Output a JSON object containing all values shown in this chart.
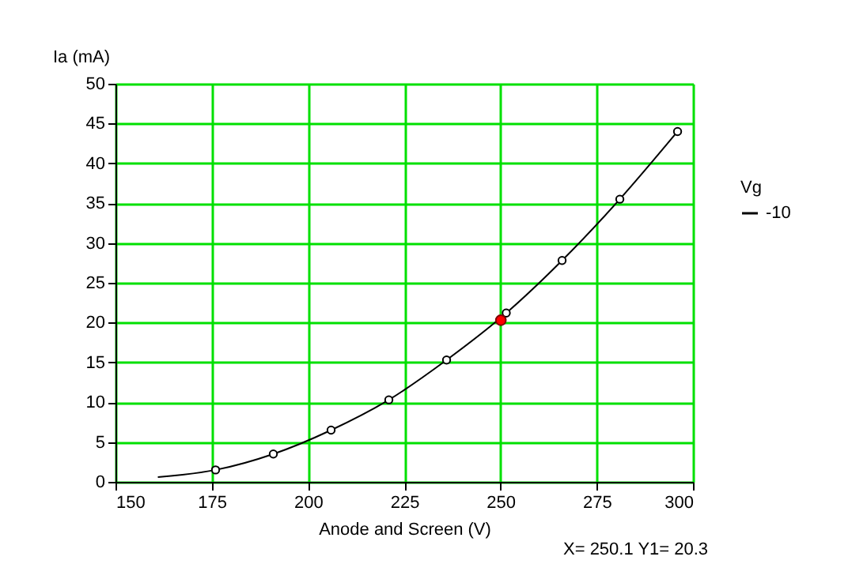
{
  "chart_data": {
    "type": "line",
    "xlabel": "Anode and Screen (V)",
    "ylabel": "Ia (mA)",
    "legend_title": "Vg",
    "xlim": [
      150,
      300
    ],
    "xticks": [
      150,
      175,
      200,
      225,
      250,
      275,
      300
    ],
    "ylim": [
      0,
      50
    ],
    "yticks": [
      0,
      5,
      10,
      15,
      20,
      25,
      30,
      35,
      40,
      45,
      50
    ],
    "grid": true,
    "legend": "right",
    "series": [
      {
        "name": "-10",
        "color": "#000000",
        "marker": "none",
        "x": [
          161,
          176,
          191,
          206,
          221,
          236,
          251.5,
          266,
          281,
          296
        ],
        "values": [
          0.6,
          1.5,
          3.5,
          6.5,
          10.3,
          15.3,
          21.2,
          27.8,
          35.5,
          44
        ]
      },
      {
        "type": "scatter",
        "color": "#000000",
        "marker": "circle",
        "x": [
          176,
          191,
          206,
          221,
          236,
          251.5,
          266,
          281,
          296
        ],
        "values": [
          1.5,
          3.5,
          6.5,
          10.3,
          15.3,
          21.2,
          27.8,
          35.5,
          44
        ]
      },
      {
        "type": "scatter",
        "color": "#ff0000",
        "marker": "circle",
        "x": [
          250.1
        ],
        "values": [
          20.3
        ]
      }
    ],
    "annotations": [
      "X=  250.1   Y1= 20.3"
    ]
  }
}
